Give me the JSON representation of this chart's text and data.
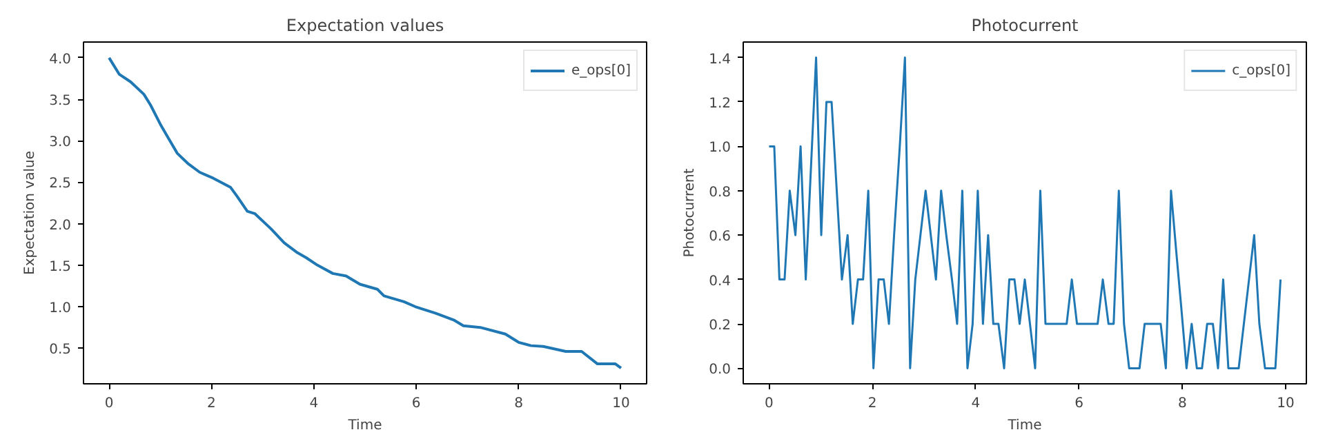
{
  "chart_data": [
    {
      "type": "line",
      "title": "Expectation values",
      "xlabel": "Time",
      "ylabel": "Expectation value",
      "legend": "top right",
      "x": [
        0,
        0.2,
        0.42,
        0.68,
        0.81,
        1.0,
        1.16,
        1.33,
        1.55,
        1.77,
        2.03,
        2.37,
        2.5,
        2.7,
        2.85,
        3.16,
        3.42,
        3.68,
        3.85,
        4.07,
        4.37,
        4.63,
        4.9,
        5.24,
        5.37,
        5.76,
        5.98,
        6.38,
        6.73,
        6.92,
        7.25,
        7.74,
        8.0,
        8.24,
        8.48,
        8.92,
        9.23,
        9.54,
        9.89,
        10.0
      ],
      "series": [
        {
          "name": "e_ops[0]",
          "color": "#1f77b4",
          "values": [
            4.0,
            3.8,
            3.71,
            3.56,
            3.43,
            3.2,
            3.03,
            2.85,
            2.72,
            2.62,
            2.55,
            2.44,
            2.33,
            2.15,
            2.12,
            1.94,
            1.77,
            1.65,
            1.59,
            1.5,
            1.4,
            1.37,
            1.27,
            1.21,
            1.13,
            1.06,
            1.0,
            0.92,
            0.84,
            0.77,
            0.75,
            0.67,
            0.57,
            0.53,
            0.52,
            0.46,
            0.46,
            0.31,
            0.31,
            0.26
          ]
        }
      ],
      "xlim": [
        -0.5,
        10.5
      ],
      "ylim": [
        0.07,
        4.19
      ],
      "xticks": [
        0,
        2,
        4,
        6,
        8,
        10
      ],
      "yticks": [
        {
          "value": 0.5,
          "label": "0.5"
        },
        {
          "value": 1.0,
          "label": "1.0"
        },
        {
          "value": 1.5,
          "label": "1.5"
        },
        {
          "value": 2.0,
          "label": "2.0"
        },
        {
          "value": 2.5,
          "label": "2.5"
        },
        {
          "value": 3.0,
          "label": "3.0"
        },
        {
          "value": 3.5,
          "label": "3.5"
        },
        {
          "value": 4.0,
          "label": "4.0"
        }
      ]
    },
    {
      "type": "line",
      "title": "Photocurrent",
      "xlabel": "Time",
      "ylabel": "Photocurrent",
      "legend": "top right",
      "x": [
        0,
        0.1,
        0.2,
        0.3,
        0.4,
        0.51,
        0.61,
        0.71,
        0.81,
        0.91,
        1.01,
        1.11,
        1.21,
        1.31,
        1.41,
        1.52,
        1.62,
        1.72,
        1.82,
        1.92,
        2.02,
        2.12,
        2.22,
        2.32,
        2.42,
        2.53,
        2.63,
        2.73,
        2.83,
        2.93,
        3.03,
        3.13,
        3.23,
        3.33,
        3.43,
        3.54,
        3.64,
        3.74,
        3.84,
        3.94,
        4.04,
        4.14,
        4.24,
        4.34,
        4.44,
        4.55,
        4.65,
        4.75,
        4.85,
        4.95,
        5.05,
        5.15,
        5.25,
        5.35,
        5.45,
        5.56,
        5.66,
        5.76,
        5.86,
        5.96,
        6.06,
        6.16,
        6.26,
        6.36,
        6.46,
        6.57,
        6.67,
        6.77,
        6.87,
        6.97,
        7.07,
        7.17,
        7.27,
        7.37,
        7.47,
        7.58,
        7.68,
        7.78,
        7.88,
        7.98,
        8.08,
        8.18,
        8.28,
        8.38,
        8.48,
        8.59,
        8.69,
        8.79,
        8.89,
        8.99,
        9.09,
        9.19,
        9.29,
        9.39,
        9.49,
        9.6,
        9.7,
        9.8,
        9.9
      ],
      "series": [
        {
          "name": "c_ops[0]",
          "color": "#1f77b4",
          "values": [
            1.0,
            1.0,
            0.4,
            0.4,
            0.8,
            0.6,
            1.0,
            0.4,
            0.9,
            1.4,
            0.6,
            1.2,
            1.2,
            0.8,
            0.4,
            0.6,
            0.2,
            0.4,
            0.4,
            0.8,
            0,
            0.4,
            0.4,
            0.2,
            0.6,
            1.0,
            1.4,
            0,
            0.4,
            0.6,
            0.8,
            0.6,
            0.4,
            0.8,
            0.6,
            0.4,
            0.2,
            0.8,
            0,
            0.2,
            0.8,
            0.2,
            0.6,
            0.2,
            0.2,
            0,
            0.4,
            0.4,
            0.2,
            0.4,
            0.2,
            0,
            0.8,
            0.2,
            0.2,
            0.2,
            0.2,
            0.2,
            0.4,
            0.2,
            0.2,
            0.2,
            0.2,
            0.2,
            0.4,
            0.2,
            0.2,
            0.8,
            0.2,
            0,
            0,
            0,
            0.2,
            0.2,
            0.2,
            0.2,
            0,
            0.8,
            0.53,
            0.27,
            0,
            0.2,
            0,
            0,
            0.2,
            0.2,
            0,
            0.4,
            0,
            0,
            0,
            0.2,
            0.4,
            0.6,
            0.2,
            0,
            0,
            0,
            0.4
          ]
        }
      ],
      "xlim": [
        -0.5,
        10.4
      ],
      "ylim": [
        -0.07,
        1.47
      ],
      "xticks": [
        0,
        2,
        4,
        6,
        8,
        10
      ],
      "yticks": [
        {
          "value": 0,
          "label": "0.0"
        },
        {
          "value": 0.2,
          "label": "0.2"
        },
        {
          "value": 0.4,
          "label": "0.4"
        },
        {
          "value": 0.6,
          "label": "0.6"
        },
        {
          "value": 0.8,
          "label": "0.8"
        },
        {
          "value": 1.0,
          "label": "1.0"
        },
        {
          "value": 1.2,
          "label": "1.2"
        },
        {
          "value": 1.4,
          "label": "1.4"
        }
      ]
    }
  ]
}
